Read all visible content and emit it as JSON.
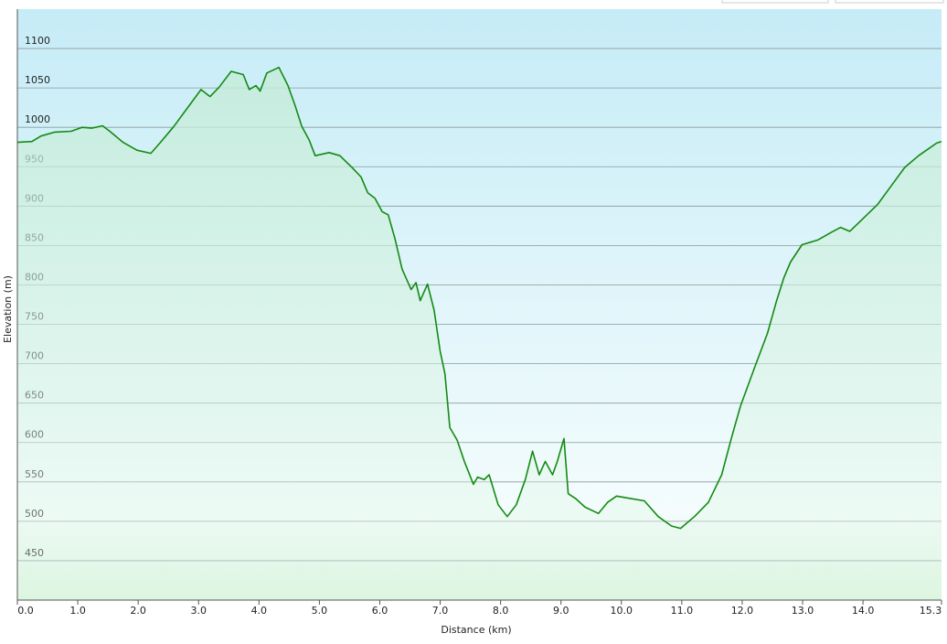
{
  "chart_data": {
    "type": "line",
    "x_label": "Distance  (km)",
    "y_label": "Elevation (m)",
    "xlim": [
      0,
      15.3
    ],
    "ylim": [
      400,
      1150
    ],
    "xticks": [
      {
        "value": 0,
        "label": "0.0"
      },
      {
        "value": 1,
        "label": "1.0"
      },
      {
        "value": 2,
        "label": "2.0"
      },
      {
        "value": 3,
        "label": "3.0"
      },
      {
        "value": 4,
        "label": "4.0"
      },
      {
        "value": 5,
        "label": "5.0"
      },
      {
        "value": 6,
        "label": "6.0"
      },
      {
        "value": 7,
        "label": "7.0"
      },
      {
        "value": 8,
        "label": "8.0"
      },
      {
        "value": 9,
        "label": "9.0"
      },
      {
        "value": 10,
        "label": "10.0"
      },
      {
        "value": 11,
        "label": "11.0"
      },
      {
        "value": 12,
        "label": "12.0"
      },
      {
        "value": 13,
        "label": "13.0"
      },
      {
        "value": 14,
        "label": "14.0"
      },
      {
        "value": 15.3,
        "label": "15.3"
      }
    ],
    "yticks": [
      450,
      500,
      550,
      600,
      650,
      700,
      750,
      800,
      850,
      900,
      950,
      1000,
      1050,
      1100
    ],
    "grid": true,
    "color": "#138a13",
    "x": [
      0,
      0.24,
      0.39,
      0.62,
      0.89,
      1.07,
      1.23,
      1.41,
      1.53,
      1.75,
      1.98,
      2.21,
      2.36,
      2.59,
      2.81,
      3.04,
      3.19,
      3.34,
      3.54,
      3.74,
      3.84,
      3.95,
      4.02,
      4.13,
      4.33,
      4.48,
      4.6,
      4.71,
      4.83,
      4.93,
      5.16,
      5.34,
      5.54,
      5.69,
      5.8,
      5.92,
      6.04,
      6.14,
      6.25,
      6.37,
      6.52,
      6.6,
      6.67,
      6.79,
      6.9,
      7.0,
      7.08,
      7.16,
      7.28,
      7.4,
      7.55,
      7.62,
      7.73,
      7.81,
      7.96,
      8.11,
      8.26,
      8.41,
      8.53,
      8.64,
      8.74,
      8.86,
      8.94,
      9.05,
      9.12,
      9.24,
      9.4,
      9.62,
      9.77,
      9.92,
      10.15,
      10.38,
      10.61,
      10.83,
      10.98,
      11.21,
      11.44,
      11.66,
      11.82,
      11.97,
      12.19,
      12.42,
      12.57,
      12.69,
      12.8,
      12.99,
      13.25,
      13.48,
      13.63,
      13.78,
      14.01,
      14.24,
      14.46,
      14.69,
      14.92,
      15.22,
      15.3
    ],
    "values": [
      981,
      982,
      989,
      994,
      995,
      1000,
      999,
      1002,
      995,
      981,
      971,
      967,
      980,
      1001,
      1024,
      1048,
      1039,
      1051,
      1071,
      1067,
      1048,
      1053,
      1046,
      1069,
      1076,
      1053,
      1027,
      1001,
      984,
      964,
      968,
      964,
      949,
      937,
      917,
      910,
      893,
      889,
      859,
      820,
      794,
      803,
      780,
      801,
      768,
      716,
      687,
      619,
      603,
      576,
      547,
      556,
      553,
      559,
      521,
      506,
      521,
      553,
      589,
      559,
      576,
      559,
      576,
      605,
      535,
      529,
      518,
      510,
      524,
      532,
      529,
      526,
      506,
      494,
      491,
      506,
      524,
      559,
      605,
      646,
      692,
      739,
      780,
      809,
      829,
      851,
      857,
      867,
      873,
      868,
      885,
      902,
      925,
      949,
      964,
      980,
      982
    ]
  }
}
